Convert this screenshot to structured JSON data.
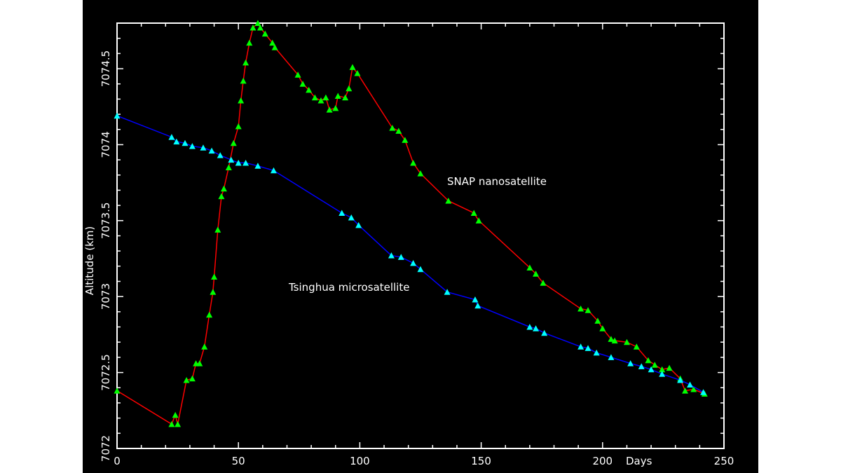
{
  "chart_data": {
    "type": "line",
    "title": "",
    "xlabel": "Days",
    "ylabel": "Altitude (km)",
    "xlim": [
      0,
      250
    ],
    "ylim": [
      7072,
      7074.8
    ],
    "xticks": [
      0,
      50,
      100,
      150,
      200,
      250
    ],
    "xtick_labels": [
      "0",
      "50",
      "100",
      "150",
      "200",
      "250"
    ],
    "yticks": [
      7072,
      7072.5,
      7073,
      7073.5,
      7074,
      7074.5
    ],
    "ytick_labels": [
      "7072",
      "7072.5",
      "7073",
      "7073.5",
      "7074",
      "7074.5"
    ],
    "grid": false,
    "background": "#000000",
    "series": [
      {
        "name": "SNAP nanosatellite",
        "line_color": "#ff0000",
        "marker_color": "#00ff00",
        "marker": "triangle",
        "x": [
          0,
          22.5,
          24,
          25,
          28.6,
          31,
          32.5,
          34,
          36,
          38,
          39.5,
          40,
          41.5,
          43,
          44,
          46,
          48,
          50,
          51,
          52,
          53,
          54.5,
          56,
          58,
          59,
          61,
          64,
          65,
          74.5,
          76.5,
          79,
          81.5,
          84,
          86,
          87.5,
          90,
          91,
          94,
          95.5,
          97,
          99,
          113.4,
          116,
          118.6,
          122,
          125,
          136.5,
          147,
          149,
          170,
          172.5,
          175.5,
          191,
          194,
          198,
          200,
          203.5,
          205,
          210,
          214,
          218.8,
          221.5,
          224.5,
          227.5,
          232,
          234,
          237.5,
          242
        ],
        "y": [
          7072.38,
          7072.16,
          7072.22,
          7072.16,
          7072.45,
          7072.46,
          7072.56,
          7072.56,
          7072.67,
          7072.88,
          7073.03,
          7073.13,
          7073.44,
          7073.66,
          7073.71,
          7073.85,
          7074.01,
          7074.12,
          7074.29,
          7074.42,
          7074.54,
          7074.67,
          7074.77,
          7074.8,
          7074.77,
          7074.73,
          7074.67,
          7074.64,
          7074.46,
          7074.4,
          7074.36,
          7074.31,
          7074.29,
          7074.31,
          7074.23,
          7074.24,
          7074.32,
          7074.31,
          7074.37,
          7074.51,
          7074.47,
          7074.11,
          7074.09,
          7074.03,
          7073.88,
          7073.81,
          7073.63,
          7073.55,
          7073.5,
          7073.19,
          7073.15,
          7073.09,
          7072.92,
          7072.91,
          7072.84,
          7072.79,
          7072.72,
          7072.71,
          7072.7,
          7072.67,
          7072.58,
          7072.55,
          7072.52,
          7072.53,
          7072.46,
          7072.38,
          7072.39,
          7072.36
        ]
      },
      {
        "name": "Tsinghua microsatellite",
        "line_color": "#0000ff",
        "marker_color": "#00ffff",
        "marker": "triangle",
        "x": [
          0,
          22.5,
          24.5,
          28,
          31,
          35.5,
          39,
          42.5,
          47,
          50,
          53,
          58,
          64.5,
          92.6,
          96.5,
          99.5,
          113,
          117,
          122,
          125,
          136,
          147.5,
          148.6,
          170,
          172.5,
          176,
          191,
          194,
          197.5,
          203.5,
          211.5,
          216,
          220,
          224.5,
          232,
          236,
          241.5
        ],
        "y": [
          7074.19,
          7074.05,
          7074.02,
          7074.01,
          7073.99,
          7073.98,
          7073.96,
          7073.93,
          7073.9,
          7073.88,
          7073.88,
          7073.86,
          7073.83,
          7073.55,
          7073.52,
          7073.47,
          7073.27,
          7073.26,
          7073.22,
          7073.18,
          7073.03,
          7072.98,
          7072.94,
          7072.8,
          7072.79,
          7072.76,
          7072.67,
          7072.66,
          7072.63,
          7072.6,
          7072.56,
          7072.54,
          7072.52,
          7072.49,
          7072.45,
          7072.42,
          7072.37
        ]
      }
    ],
    "annotations": [
      {
        "text": "SNAP nanosatellite",
        "x": 136,
        "y": 7073.7
      },
      {
        "text": "Tsinghua microsatellite",
        "x": 71,
        "y": 7073.05
      }
    ]
  }
}
